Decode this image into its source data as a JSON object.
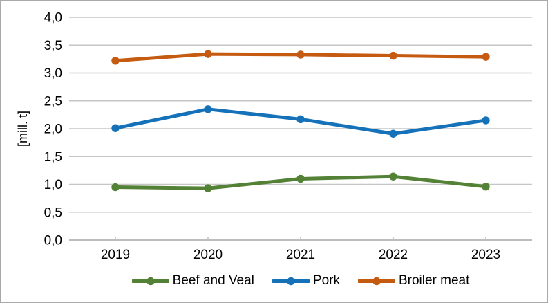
{
  "figure": {
    "background": "#ffffff",
    "border_color": "#a9a9a9"
  },
  "chart_data": {
    "type": "line",
    "title": "",
    "xlabel": "",
    "ylabel": "[mill. t]",
    "categories": [
      "2019",
      "2020",
      "2021",
      "2022",
      "2023"
    ],
    "series": [
      {
        "name": "Beef and Veal",
        "color": "#538135",
        "values": [
          0.95,
          0.93,
          1.1,
          1.14,
          0.96
        ]
      },
      {
        "name": "Pork",
        "color": "#1572b8",
        "values": [
          2.01,
          2.35,
          2.17,
          1.91,
          2.15
        ]
      },
      {
        "name": "Broiler meat",
        "color": "#c55a11",
        "values": [
          3.22,
          3.34,
          3.33,
          3.31,
          3.29
        ]
      }
    ],
    "ylim": [
      0,
      4
    ],
    "ytick_step": 0.5,
    "ytick_labels": [
      "0,0",
      "0,5",
      "1,0",
      "1,5",
      "2,0",
      "2,5",
      "3,0",
      "3,5",
      "4,0"
    ],
    "grid": "horizontal",
    "grid_color": "#c6c6c6",
    "axis_color": "#bdbdbd",
    "tick_color": "#bdbdbd",
    "text_color": "#000000",
    "legend_position": "bottom-center"
  }
}
